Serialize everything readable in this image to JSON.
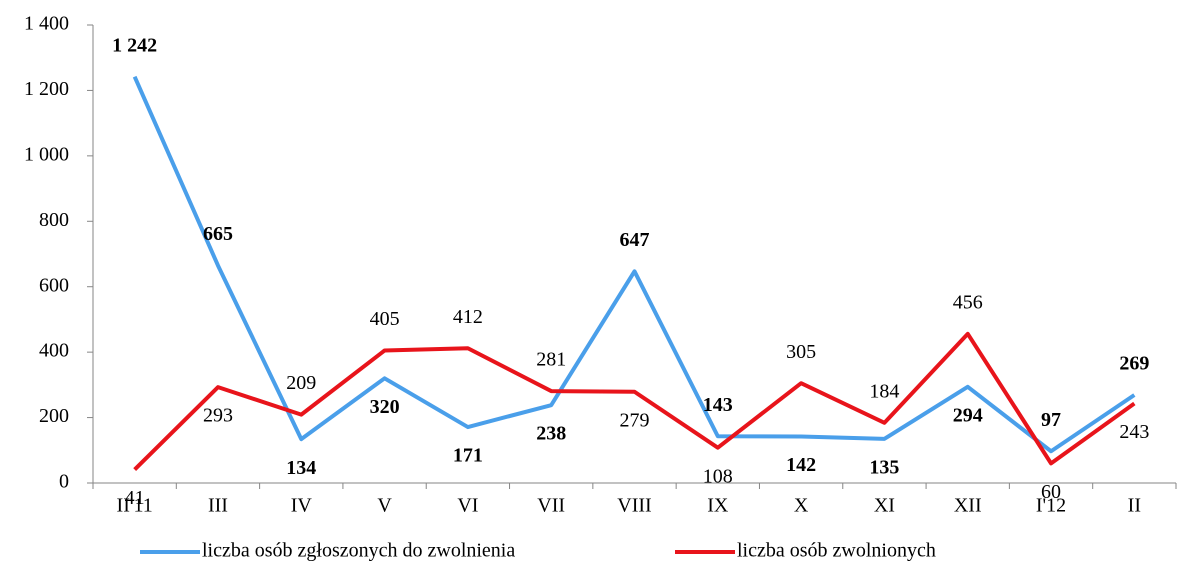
{
  "chart_data": {
    "type": "line",
    "categories": [
      "II'11",
      "III",
      "IV",
      "V",
      "VI",
      "VII",
      "VIII",
      "IX",
      "X",
      "XI",
      "XII",
      "I'12",
      "II"
    ],
    "series": [
      {
        "name": "liczba osób zgłoszonych do zwolnienia",
        "color": "#4a9fea",
        "values": [
          1242,
          665,
          134,
          320,
          171,
          238,
          647,
          143,
          142,
          135,
          294,
          97,
          269
        ],
        "value_labels": [
          "1 242",
          "665",
          "134",
          "320",
          "171",
          "238",
          "647",
          "143",
          "142",
          "135",
          "294",
          "97",
          "269"
        ]
      },
      {
        "name": "liczba osób zwolnionych",
        "color": "#e8141b",
        "values": [
          41,
          293,
          209,
          405,
          412,
          281,
          279,
          108,
          305,
          184,
          456,
          60,
          243
        ]
      }
    ],
    "ylim": [
      0,
      1400
    ],
    "yticks": [
      0,
      200,
      400,
      600,
      800,
      {
        "value": 1000,
        "label": "1 000"
      },
      {
        "value": 1200,
        "label": "1 200"
      },
      {
        "value": 1400,
        "label": "1 400"
      }
    ],
    "legend": "bottom"
  }
}
